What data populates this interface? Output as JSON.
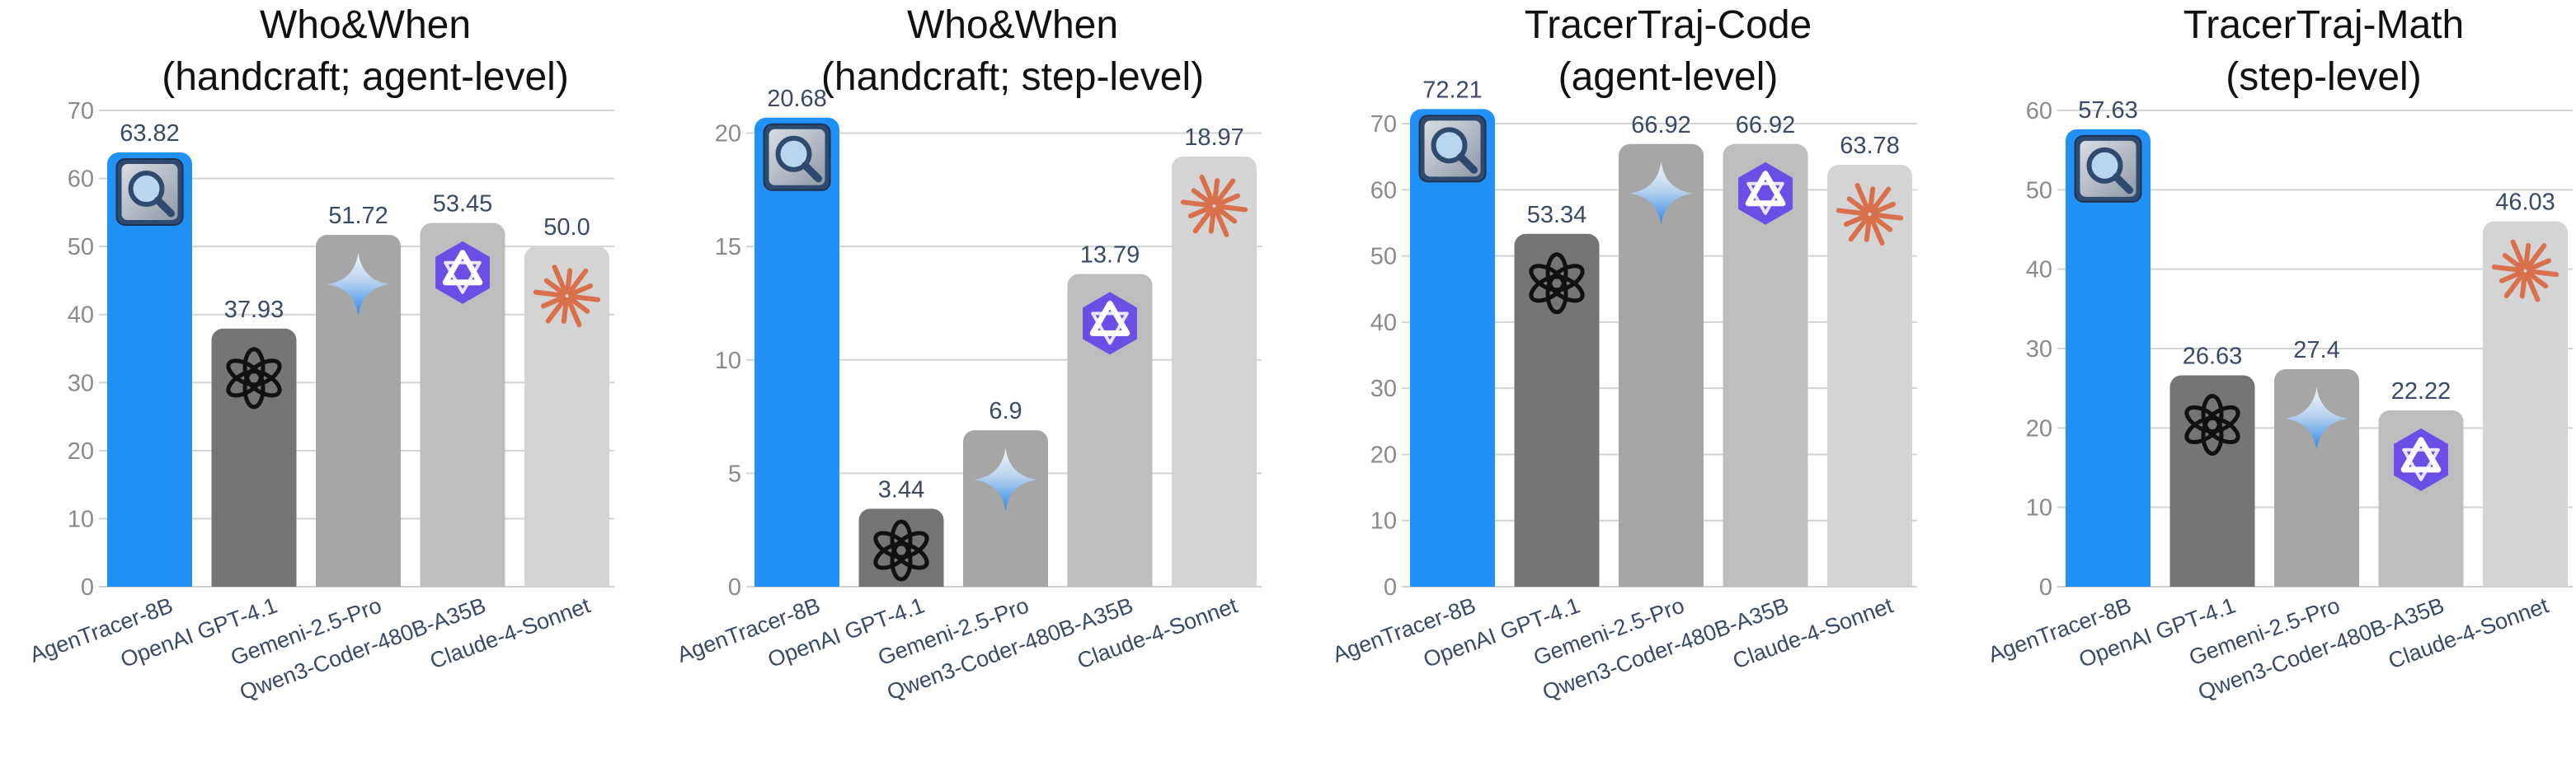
{
  "chart_data": [
    {
      "type": "bar",
      "title": [
        "Who&When",
        "(handcraft; agent-level)"
      ],
      "categories": [
        "AgenTracer-8B",
        "OpenAI GPT-4.1",
        "Gemeni-2.5-Pro",
        "Qwen3-Coder-480B-A35B",
        "Claude-4-Sonnet"
      ],
      "values": [
        63.82,
        37.93,
        51.72,
        53.45,
        50.0
      ],
      "value_labels": [
        "63.82",
        "37.93",
        "51.72",
        "53.45",
        "50.0"
      ],
      "ylim": [
        0,
        70
      ],
      "yticks": [
        0,
        10,
        20,
        30,
        40,
        50,
        60,
        70
      ],
      "grid": true
    },
    {
      "type": "bar",
      "title": [
        "Who&When",
        "(handcraft; step-level)"
      ],
      "categories": [
        "AgenTracer-8B",
        "OpenAI GPT-4.1",
        "Gemeni-2.5-Pro",
        "Qwen3-Coder-480B-A35B",
        "Claude-4-Sonnet"
      ],
      "values": [
        20.68,
        3.44,
        6.9,
        13.79,
        18.97
      ],
      "value_labels": [
        "20.68",
        "3.44",
        "6.9",
        "13.79",
        "18.97"
      ],
      "ylim": [
        0,
        21
      ],
      "yticks": [
        0,
        5,
        10,
        15,
        20
      ],
      "grid": true
    },
    {
      "type": "bar",
      "title": [
        "TracerTraj-Code",
        "(agent-level)"
      ],
      "categories": [
        "AgenTracer-8B",
        "OpenAI GPT-4.1",
        "Gemeni-2.5-Pro",
        "Qwen3-Coder-480B-A35B",
        "Claude-4-Sonnet"
      ],
      "values": [
        72.21,
        53.34,
        66.92,
        66.92,
        63.78
      ],
      "value_labels": [
        "72.21",
        "53.34",
        "66.92",
        "66.92",
        "63.78"
      ],
      "ylim": [
        0,
        72
      ],
      "yticks": [
        0,
        10,
        20,
        30,
        40,
        50,
        60,
        70
      ],
      "grid": true
    },
    {
      "type": "bar",
      "title": [
        "TracerTraj-Math",
        "(step-level)"
      ],
      "categories": [
        "AgenTracer-8B",
        "OpenAI GPT-4.1",
        "Gemeni-2.5-Pro",
        "Qwen3-Coder-480B-A35B",
        "Claude-4-Sonnet"
      ],
      "values": [
        57.63,
        26.63,
        27.4,
        22.22,
        46.03
      ],
      "value_labels": [
        "57.63",
        "26.63",
        "27.4",
        "22.22",
        "46.03"
      ],
      "ylim": [
        0,
        60
      ],
      "yticks": [
        0,
        10,
        20,
        30,
        40,
        50,
        60
      ],
      "grid": true
    }
  ],
  "colors": {
    "bars": [
      "#2291f5",
      "#757575",
      "#a6a6a6",
      "#bdbdbd",
      "#d4d4d4"
    ],
    "grid": "#d3d3d3",
    "axis_text": "#8a8a8a",
    "label_text": "#3a4a66",
    "title_text": "#111111"
  },
  "bar_icons": [
    "magnifier-icon",
    "openai-icon",
    "gemini-icon",
    "qwen-icon",
    "claude-icon"
  ]
}
